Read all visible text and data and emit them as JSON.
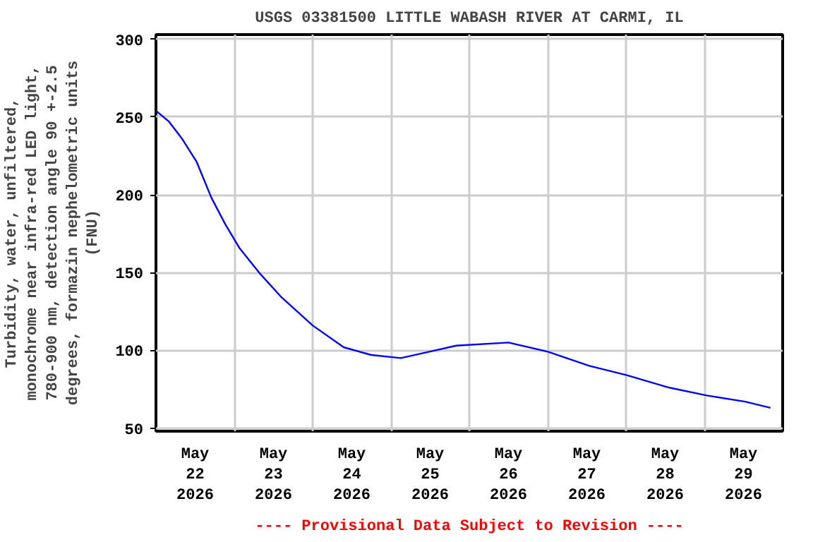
{
  "chart_data": {
    "type": "line",
    "title": "USGS 03381500 LITTLE WABASH RIVER AT CARMI, IL",
    "ylabel": "Turbidity, water, unfiltered,\nmonochrome near infra-red LED light,\n780-900 nm, detection angle 90 +-2.5\ndegrees, formazin nephelometric units\n(FNU)",
    "annotations": [
      "---- Provisional Data Subject to Revision ----"
    ],
    "xlim": [
      "2026-05-22T00:00",
      "2026-05-30T00:00"
    ],
    "xticks": [
      {
        "value": "2026-05-22T12:00",
        "label": "May\n22\n2026"
      },
      {
        "value": "2026-05-23T00:00",
        "label": null
      },
      {
        "value": "2026-05-23T12:00",
        "label": "May\n23\n2026"
      },
      {
        "value": "2026-05-24T00:00",
        "label": null
      },
      {
        "value": "2026-05-24T12:00",
        "label": "May\n24\n2026"
      },
      {
        "value": "2026-05-25T00:00",
        "label": null
      },
      {
        "value": "2026-05-25T12:00",
        "label": "May\n25\n2026"
      },
      {
        "value": "2026-05-26T00:00",
        "label": null
      },
      {
        "value": "2026-05-26T12:00",
        "label": "May\n26\n2026"
      },
      {
        "value": "2026-05-27T00:00",
        "label": null
      },
      {
        "value": "2026-05-27T12:00",
        "label": "May\n27\n2026"
      },
      {
        "value": "2026-05-28T00:00",
        "label": null
      },
      {
        "value": "2026-05-28T12:00",
        "label": "May\n28\n2026"
      },
      {
        "value": "2026-05-29T00:00",
        "label": null
      },
      {
        "value": "2026-05-29T12:00",
        "label": "May\n29\n2026"
      }
    ],
    "ylim": [
      48,
      303
    ],
    "yticks": [
      50,
      100,
      150,
      200,
      250,
      300
    ],
    "grid": true,
    "marker": "none",
    "line_style": "solid",
    "series": [
      {
        "color": "#0000ff",
        "x": [
          "2026-05-22T00:00",
          "2026-05-22T04:00",
          "2026-05-22T08:00",
          "2026-05-22T12:30",
          "2026-05-22T17:00",
          "2026-05-22T21:15",
          "2026-05-23T01:30",
          "2026-05-23T08:00",
          "2026-05-23T14:30",
          "2026-05-24T00:00",
          "2026-05-24T09:30",
          "2026-05-24T18:00",
          "2026-05-25T03:00",
          "2026-05-25T11:30",
          "2026-05-25T20:00",
          "2026-05-26T12:00",
          "2026-05-27T00:15",
          "2026-05-27T12:45",
          "2026-05-28T00:15",
          "2026-05-28T13:15",
          "2026-05-29T00:45",
          "2026-05-29T12:30",
          "2026-05-29T20:15"
        ],
        "values": [
          254,
          247,
          236,
          221,
          198,
          181,
          166,
          149,
          134,
          116,
          102,
          97,
          95,
          99,
          103,
          105,
          99,
          90,
          84,
          76,
          71,
          67,
          63
        ]
      }
    ]
  }
}
